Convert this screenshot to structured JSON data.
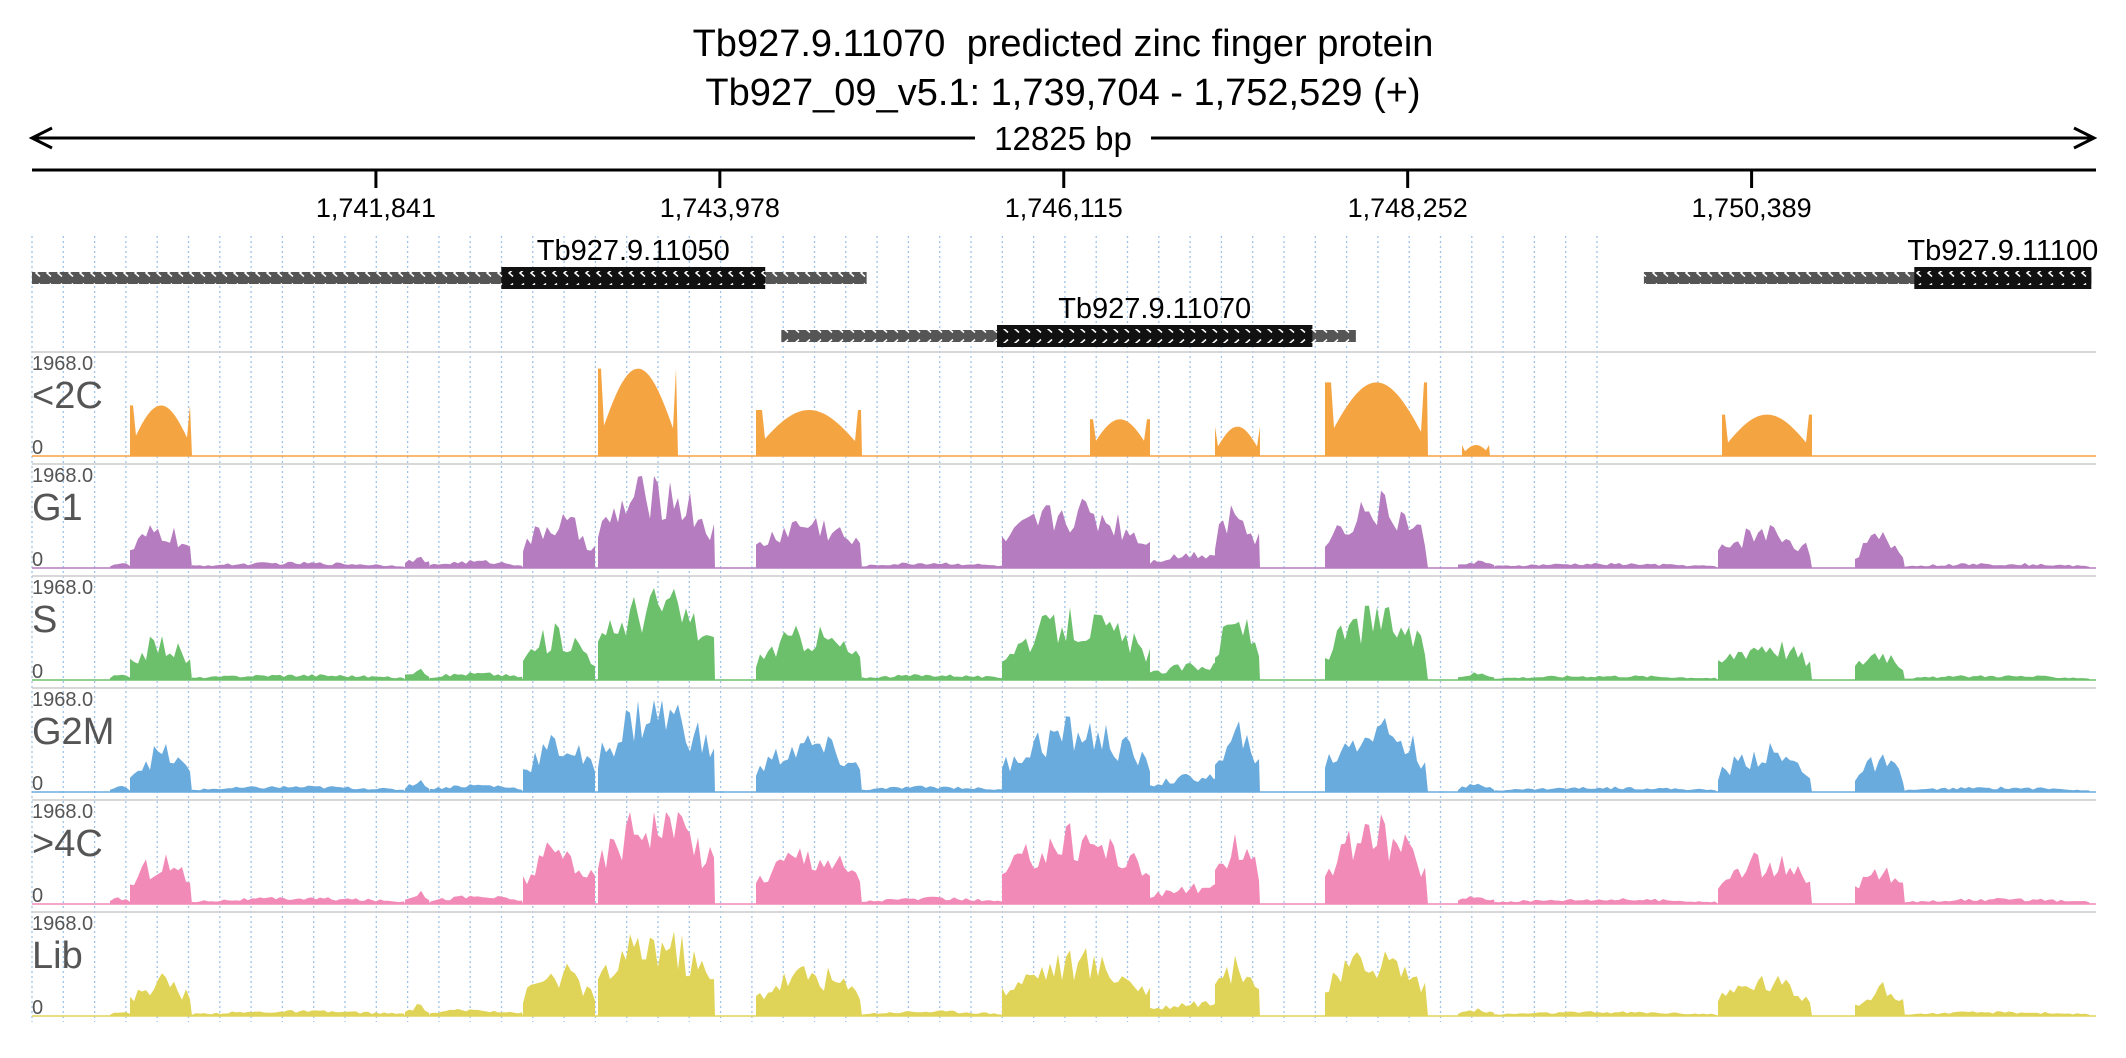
{
  "header": {
    "gene_id": "Tb927.9.11070",
    "gene_desc": "predicted zinc finger protein",
    "locus": "Tb927_09_v5.1: 1,739,704 - 1,752,529 (+)",
    "span_label": "12825 bp"
  },
  "region": {
    "start": 1739704,
    "end": 1752529
  },
  "ruler": {
    "ticks": [
      "1,741,841",
      "1,743,978",
      "1,746,115",
      "1,748,252",
      "1,750,389"
    ]
  },
  "genes": [
    {
      "name": "Tb927.9.11050",
      "start": 1739704,
      "end": 1744890,
      "cds_start": 1742620,
      "cds_end": 1744260,
      "strand": "-",
      "row": 0
    },
    {
      "name": "Tb927.9.11070",
      "start": 1744360,
      "end": 1747930,
      "cds_start": 1745700,
      "cds_end": 1747660,
      "strand": "-",
      "row": 1
    },
    {
      "name": "Tb927.9.11100",
      "start": 1749720,
      "end": 1752500,
      "cds_start": 1751400,
      "cds_end": 1752500,
      "strand": "-",
      "row": 0
    }
  ],
  "tracks_scale": {
    "max": "1968.0",
    "min": "0"
  },
  "tracks": [
    {
      "name": "<2C",
      "color": "#f5a442",
      "style": "islands"
    },
    {
      "name": "G1",
      "color": "#b57cbf",
      "style": "coverage"
    },
    {
      "name": "S",
      "color": "#6cc06c",
      "style": "coverage"
    },
    {
      "name": "G2M",
      "color": "#6aabde",
      "style": "coverage"
    },
    {
      "name": ">4C",
      "color": "#f28ab8",
      "style": "coverage"
    },
    {
      "name": "Lib",
      "color": "#e0d458",
      "style": "coverage"
    }
  ],
  "colors": {
    "gridline": "#9fc3e8",
    "utr": "#555555",
    "cds": "#111111"
  }
}
